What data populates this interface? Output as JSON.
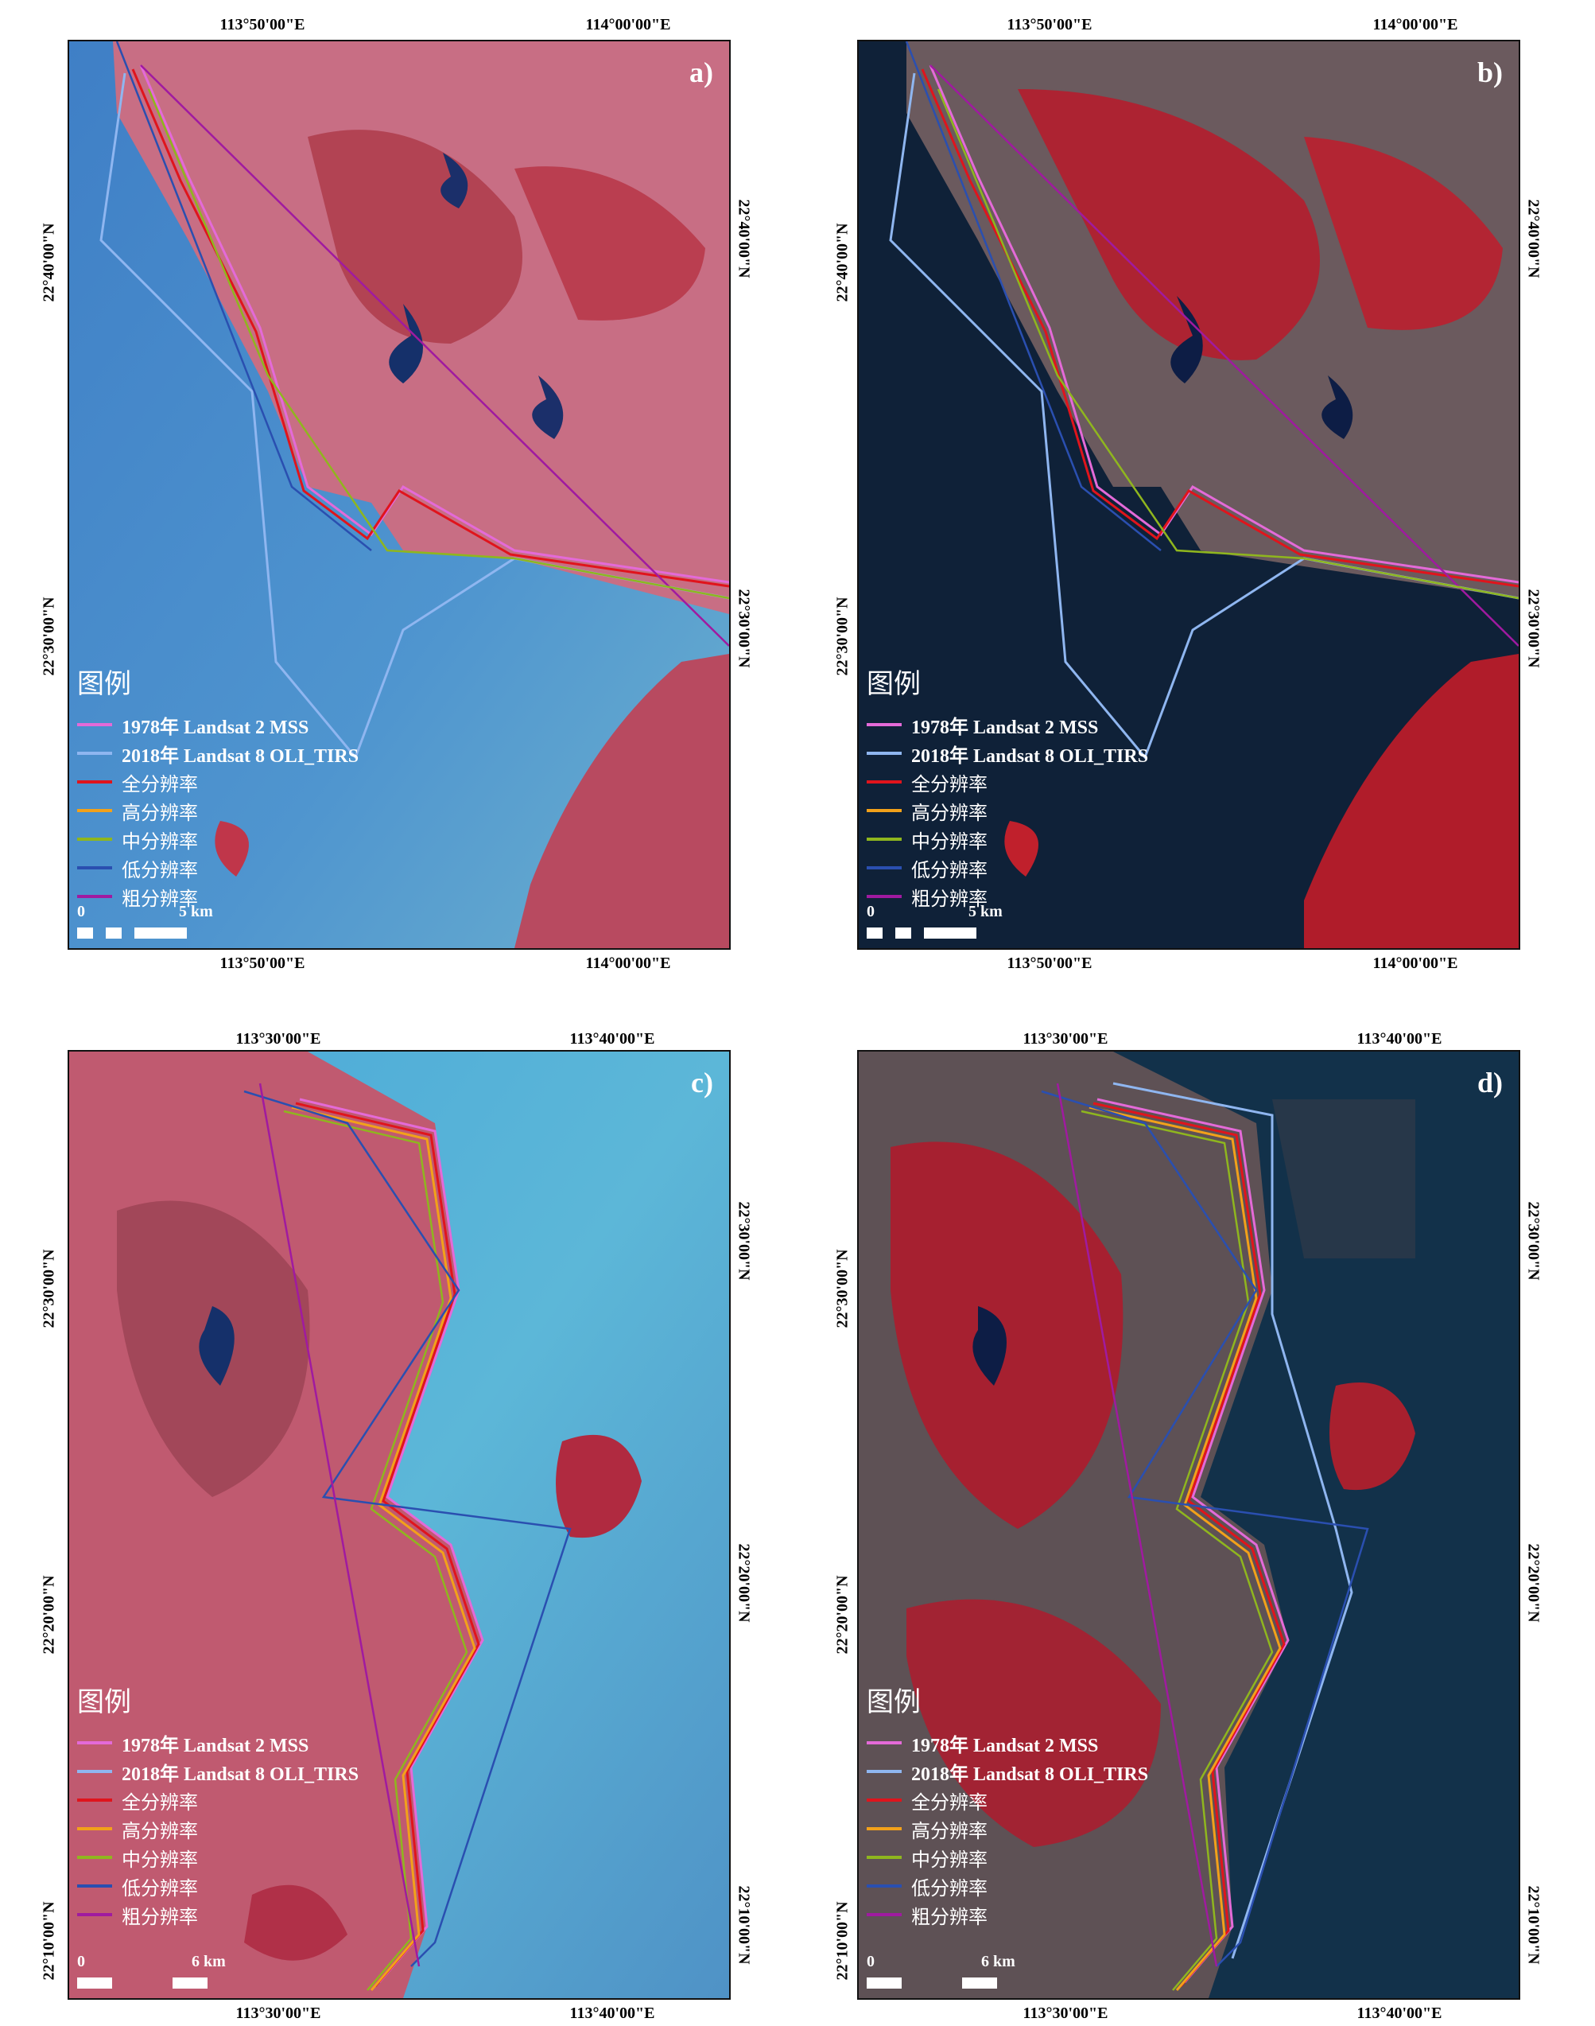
{
  "legend": {
    "title": "图例",
    "items": [
      {
        "label": "1978年 Landsat 2 MSS",
        "color": "#e46ad8"
      },
      {
        "label": "2018年 Landsat 8 OLI_TIRS",
        "color": "#8fb6f0"
      },
      {
        "label": "全分辨率",
        "color": "#e0141c"
      },
      {
        "label": "高分辨率",
        "color": "#f2a11a"
      },
      {
        "label": "中分辨率",
        "color": "#8fb61e"
      },
      {
        "label": "低分辨率",
        "color": "#2a4fb0"
      },
      {
        "label": "粗分辨率",
        "color": "#a01aa0"
      }
    ]
  },
  "panels": [
    {
      "id": "a",
      "label": "a)",
      "scene": "early",
      "lon_top": [
        "113°50'00\"E",
        "114°00'00\"E"
      ],
      "lon_bottom": [
        "113°50'00\"E",
        "114°00'00\"E"
      ],
      "lat_left": [
        "22°40'00\"N",
        "22°30'00\"N"
      ],
      "lat_right": [
        "22°40'00\"N",
        "22°30'00\"N"
      ],
      "scale": {
        "zero": "0",
        "end": "5 km"
      }
    },
    {
      "id": "b",
      "label": "b)",
      "scene": "recent",
      "lon_top": [
        "113°50'00\"E",
        "114°00'00\"E"
      ],
      "lon_bottom": [
        "113°50'00\"E",
        "114°00'00\"E"
      ],
      "lat_left": [
        "22°40'00\"N",
        "22°30'00\"N"
      ],
      "lat_right": [
        "22°40'00\"N",
        "22°30'00\"N"
      ],
      "scale": {
        "zero": "0",
        "end": "5 km"
      }
    },
    {
      "id": "c",
      "label": "c)",
      "scene": "early",
      "lon_top": [
        "113°30'00\"E",
        "113°40'00\"E"
      ],
      "lon_bottom": [
        "113°30'00\"E",
        "113°40'00\"E"
      ],
      "lat_left": [
        "22°30'00\"N",
        "22°20'00\"N",
        "22°10'00\"N"
      ],
      "lat_right": [
        "22°30'00\"N",
        "22°20'00\"N",
        "22°10'00\"N"
      ],
      "scale": {
        "zero": "0",
        "end": "6 km"
      }
    },
    {
      "id": "d",
      "label": "d)",
      "scene": "recent",
      "lon_top": [
        "113°30'00\"E",
        "113°40'00\"E"
      ],
      "lon_bottom": [
        "113°30'00\"E",
        "113°40'00\"E"
      ],
      "lat_left": [
        "22°30'00\"N",
        "22°20'00\"N",
        "22°10'00\"N"
      ],
      "lat_right": [
        "22°30'00\"N",
        "22°20'00\"N",
        "22°10'00\"N"
      ],
      "scale": {
        "zero": "0",
        "end": "6 km"
      }
    }
  ]
}
